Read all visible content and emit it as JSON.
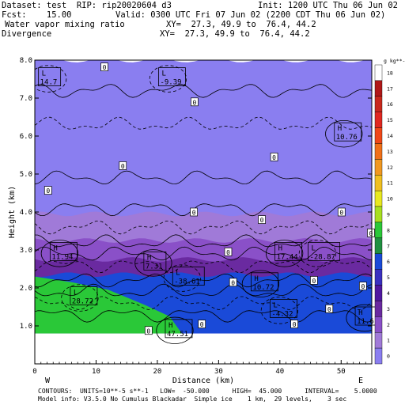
{
  "header": {
    "dataset": "Dataset: test  RIP: rip20020604 d3",
    "init": "Init: 1200 UTC Thu 06 Jun 02",
    "fcst": "Fcst:    15.00",
    "valid": "Valid: 0300 UTC Fri 07 Jun 02 (2200 CDT Thu 06 Jun 02)",
    "field1": "Water vapor mixing ratio",
    "xy1": "XY=  27.3, 49.9 to  76.4, 44.2",
    "field2": "Divergence",
    "xy2": "XY=  27.3, 49.9 to  76.4, 44.2"
  },
  "footer": {
    "line1": "CONTOURS:  UNITS=10**-5 s**-1   LOW=  -50.000      HIGH=  45.000      INTERVAL=    5.0000",
    "line2": "Model info: V3.5.0 No Cumulus Blackadar  Simple ice    1 km,  29 levels,    3 sec"
  },
  "colors": {
    "background_fill": "#8a7ef0",
    "purple_light": "#a07ad8",
    "purple_mid": "#8a50c8",
    "purple_dark": "#6a2aa0",
    "blue": "#1a4ad8",
    "green": "#2ac838",
    "surface": "#ffffff"
  },
  "chart_data": {
    "type": "heatmap",
    "title": "",
    "xlabel": "Distance (km)",
    "ylabel": "Height (km)",
    "xlim": [
      0,
      55
    ],
    "ylim": [
      0,
      8
    ],
    "xticks": [
      "0",
      "10",
      "20",
      "30",
      "40",
      "50"
    ],
    "xtick_values": [
      0,
      10,
      20,
      30,
      40,
      50
    ],
    "yticks": [
      "1.0",
      "2.0",
      "3.0",
      "4.0",
      "5.0",
      "6.0",
      "7.0",
      "8.0"
    ],
    "ytick_values": [
      1,
      2,
      3,
      4,
      5,
      6,
      7,
      8
    ],
    "x_end_labels": {
      "left": "W",
      "right": "E"
    },
    "colorbar": {
      "unit_label": "g kg**-1",
      "labels": [
        "18",
        "17",
        "16",
        "15",
        "14",
        "13",
        "12",
        "11",
        "10",
        "9",
        "8",
        "7",
        "6",
        "5",
        "4",
        "3",
        "2",
        "1",
        "0"
      ],
      "values": [
        18,
        17,
        16,
        15,
        14,
        13,
        12,
        11,
        10,
        9,
        8,
        7,
        6,
        5,
        4,
        3,
        2,
        1,
        0
      ],
      "colors": [
        "#ffffff",
        "#b01818",
        "#c8281c",
        "#e02820",
        "#f04818",
        "#f07018",
        "#f09820",
        "#f0c020",
        "#e8e820",
        "#a8e020",
        "#2ac838",
        "#209040",
        "#1a4ad8",
        "#3a30c0",
        "#5018a0",
        "#6a2aa0",
        "#8a50c8",
        "#a07ad8",
        "#8a7ef0"
      ]
    },
    "bands": [
      {
        "value": 0,
        "color": "#8a7ef0",
        "y_bottom": 0.8,
        "y_top": 8.0
      },
      {
        "value": 1,
        "color": "#a07ad8",
        "y_bottom": 0.8,
        "y_top": 3.95
      },
      {
        "value": 2,
        "color": "#8a50c8",
        "y_bottom": 0.8,
        "y_top": 3.25
      },
      {
        "value": 3,
        "color": "#6a2aa0",
        "y_bottom": 0.8,
        "y_top": 2.75
      },
      {
        "value": 4,
        "color": "#1a4ad8",
        "y_bottom": 0.8,
        "y_top": 2.35
      },
      {
        "value": 7,
        "color": "#2ac838",
        "y_bottom": 0.8,
        "y_top": 2.3
      }
    ],
    "surface_height": 0.8,
    "extrema": [
      {
        "kind": "L",
        "value": "14.7",
        "x": 0.6,
        "y": 7.55
      },
      {
        "kind": "L",
        "value": "-9.39",
        "x": 20.2,
        "y": 7.55
      },
      {
        "kind": "H",
        "value": "10.76",
        "x": 48.9,
        "y": 6.1
      },
      {
        "kind": "H",
        "value": "11.94",
        "x": 2.5,
        "y": 2.95
      },
      {
        "kind": "H",
        "value": "7.31",
        "x": 17.8,
        "y": 2.7
      },
      {
        "kind": "L",
        "value": "-38.61",
        "x": 22.5,
        "y": 2.3
      },
      {
        "kind": "L",
        "value": "28.72",
        "x": 5.8,
        "y": 1.78
      },
      {
        "kind": "H",
        "value": "17.44",
        "x": 39.2,
        "y": 2.95
      },
      {
        "kind": "L",
        "value": "-28.87",
        "x": 44.6,
        "y": 2.95
      },
      {
        "kind": "H",
        "value": "10.72",
        "x": 35.3,
        "y": 2.15
      },
      {
        "kind": "L",
        "value": "-4.32",
        "x": 38.4,
        "y": 1.45
      },
      {
        "kind": "H",
        "value": "47.51",
        "x": 21.3,
        "y": 0.92
      },
      {
        "kind": "H",
        "value": "11.6",
        "x": 52.3,
        "y": 1.25
      }
    ],
    "zero_labels": [
      {
        "value": "0",
        "x": 11.3,
        "y": 7.82
      },
      {
        "value": "0",
        "x": 14.3,
        "y": 5.22
      },
      {
        "value": "0",
        "x": 2.1,
        "y": 4.57
      },
      {
        "value": "0",
        "x": 25.9,
        "y": 4.0
      },
      {
        "value": "0",
        "x": 50.0,
        "y": 4.0
      },
      {
        "value": "0",
        "x": 37.0,
        "y": 3.8
      },
      {
        "value": "0",
        "x": 39.0,
        "y": 5.45
      },
      {
        "value": "0",
        "x": 26.0,
        "y": 6.9
      },
      {
        "value": "0",
        "x": 54.8,
        "y": 3.45
      },
      {
        "value": "0",
        "x": 31.5,
        "y": 2.95
      },
      {
        "value": "0",
        "x": 45.5,
        "y": 2.2
      },
      {
        "value": "0",
        "x": 53.5,
        "y": 2.05
      },
      {
        "value": "0",
        "x": 32.3,
        "y": 2.15
      },
      {
        "value": "0",
        "x": 42.3,
        "y": 1.05
      },
      {
        "value": "0",
        "x": 48.0,
        "y": 1.45
      },
      {
        "value": "0",
        "x": 27.2,
        "y": 1.05
      },
      {
        "value": "0",
        "x": 18.5,
        "y": 0.88
      }
    ]
  }
}
